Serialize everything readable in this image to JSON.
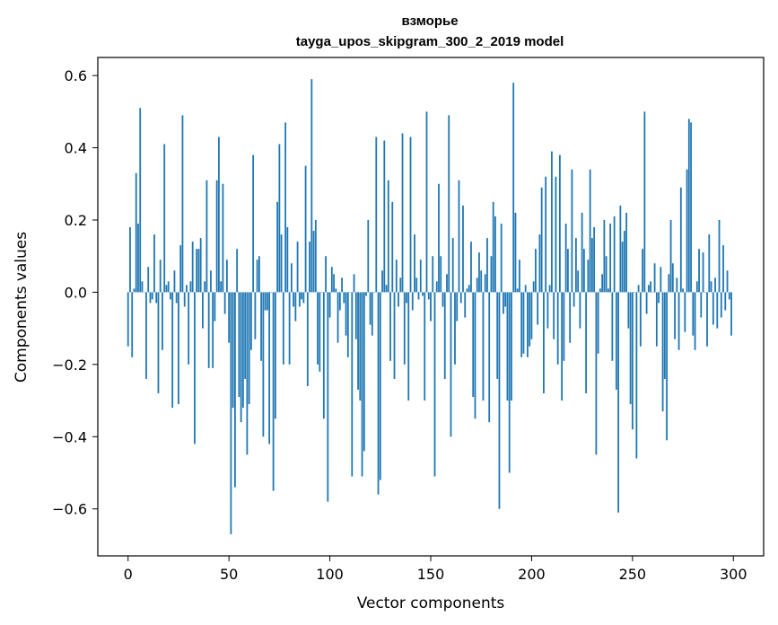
{
  "chart_data": {
    "type": "bar",
    "title": "взморье",
    "subtitle": "tayga_upos_skipgram_300_2_2019 model",
    "xlabel": "Vector components",
    "ylabel": "Components values",
    "xlim": [
      -15,
      315
    ],
    "ylim": [
      -0.73,
      0.65
    ],
    "x_ticks": [
      0,
      50,
      100,
      150,
      200,
      250,
      300
    ],
    "x_tick_labels": [
      "0",
      "50",
      "100",
      "150",
      "200",
      "250",
      "300"
    ],
    "y_ticks": [
      -0.6,
      -0.4,
      -0.2,
      0.0,
      0.2,
      0.4,
      0.6
    ],
    "y_tick_labels": [
      "−0.6",
      "−0.4",
      "−0.2",
      "0.0",
      "0.2",
      "0.4",
      "0.6"
    ],
    "grid": false,
    "bar_color": "#1f77b4",
    "values": [
      -0.15,
      0.18,
      -0.18,
      0.01,
      0.33,
      0.19,
      0.51,
      0.03,
      0.0,
      -0.24,
      0.07,
      -0.03,
      -0.02,
      0.16,
      -0.03,
      -0.28,
      0.09,
      -0.16,
      0.41,
      0.02,
      0.03,
      -0.02,
      -0.32,
      0.06,
      -0.03,
      -0.31,
      0.13,
      0.49,
      -0.04,
      0.02,
      -0.2,
      0.03,
      0.14,
      -0.42,
      0.12,
      0.12,
      0.15,
      -0.1,
      0.03,
      0.31,
      -0.21,
      0.06,
      -0.21,
      -0.08,
      0.31,
      0.43,
      0.03,
      0.3,
      -0.06,
      0.09,
      -0.14,
      -0.67,
      -0.32,
      -0.54,
      0.12,
      -0.29,
      -0.36,
      -0.32,
      -0.24,
      -0.45,
      -0.31,
      -0.16,
      0.38,
      -0.13,
      0.09,
      0.1,
      -0.19,
      -0.4,
      -0.05,
      -0.05,
      -0.42,
      0.0,
      -0.55,
      -0.35,
      0.25,
      0.41,
      0.16,
      -0.2,
      0.47,
      0.18,
      -0.2,
      0.08,
      -0.04,
      -0.08,
      0.14,
      -0.04,
      -0.02,
      -0.03,
      0.35,
      -0.26,
      0.14,
      0.59,
      0.17,
      0.2,
      -0.2,
      -0.22,
      0.0,
      -0.35,
      0.1,
      -0.58,
      -0.07,
      0.07,
      0.05,
      0.01,
      -0.14,
      -0.05,
      0.04,
      -0.03,
      -0.12,
      -0.18,
      0.0,
      -0.51,
      0.05,
      -0.13,
      -0.27,
      -0.3,
      -0.51,
      -0.44,
      -0.01,
      0.2,
      -0.09,
      -0.12,
      0.0,
      0.43,
      -0.56,
      -0.52,
      0.06,
      0.42,
      0.02,
      0.31,
      -0.19,
      0.25,
      -0.24,
      0.09,
      -0.04,
      0.04,
      0.44,
      -0.2,
      -0.03,
      -0.3,
      0.43,
      -0.05,
      0.16,
      0.04,
      -0.02,
      0.09,
      -0.01,
      -0.3,
      0.5,
      -0.02,
      -0.08,
      0.1,
      -0.51,
      0.03,
      0.3,
      0.1,
      -0.04,
      -0.24,
      0.05,
      0.49,
      -0.4,
      0.15,
      -0.2,
      -0.08,
      0.31,
      -0.03,
      0.24,
      -0.07,
      0.01,
      0.02,
      0.14,
      -0.29,
      -0.35,
      0.04,
      0.11,
      0.06,
      -0.3,
      0.05,
      0.15,
      -0.36,
      0.1,
      0.25,
      0.21,
      -0.24,
      -0.6,
      0.19,
      -0.06,
      -0.04,
      -0.3,
      -0.5,
      -0.3,
      0.58,
      0.22,
      0.01,
      0.09,
      -0.18,
      -0.17,
      0.02,
      -0.18,
      -0.15,
      -0.13,
      0.03,
      0.12,
      -0.09,
      0.16,
      0.29,
      -0.28,
      0.32,
      -0.1,
      0.02,
      0.39,
      -0.13,
      0.32,
      -0.2,
      0.38,
      -0.3,
      -0.19,
      0.19,
      0.12,
      -0.14,
      0.34,
      -0.04,
      0.15,
      0.06,
      -0.1,
      0.22,
      0.12,
      -0.28,
      0.09,
      0.34,
      0.15,
      0.18,
      -0.45,
      -0.17,
      0.01,
      0.05,
      0.2,
      0.1,
      0.01,
      0.19,
      -0.19,
      0.21,
      -0.27,
      -0.61,
      0.24,
      0.14,
      0.17,
      0.22,
      -0.1,
      -0.31,
      -0.38,
      0.0,
      -0.46,
      0.02,
      -0.15,
      0.12,
      0.5,
      -0.06,
      0.02,
      0.03,
      0.0,
      0.08,
      -0.15,
      -0.03,
      0.07,
      -0.33,
      -0.24,
      -0.41,
      0.05,
      0.2,
      0.08,
      -0.13,
      0.04,
      -0.16,
      0.29,
      0.01,
      -0.11,
      0.34,
      0.48,
      0.47,
      -0.12,
      -0.16,
      0.03,
      0.12,
      -0.07,
      0.11,
      0.0,
      -0.15,
      0.16,
      0.03,
      -0.09,
      0.04,
      -0.1,
      0.2,
      -0.07,
      0.13,
      -0.05,
      0.06,
      -0.02,
      -0.12
    ]
  }
}
